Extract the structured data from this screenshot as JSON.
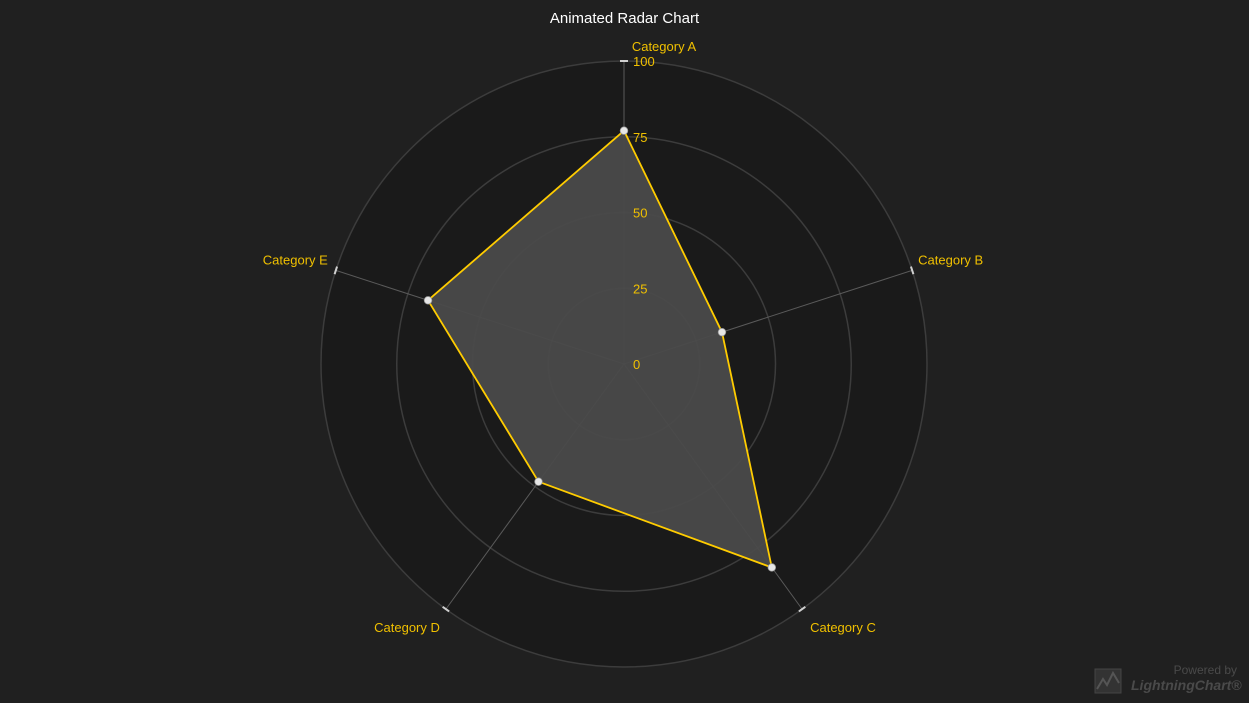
{
  "chart_data": {
    "type": "radar",
    "title": "Animated Radar Chart",
    "categories": [
      "Category A",
      "Category B",
      "Category C",
      "Category D",
      "Category E"
    ],
    "rlim": [
      0,
      100
    ],
    "ticks": [
      0,
      25,
      50,
      75,
      100
    ],
    "tick_labels": [
      "0",
      "25",
      "50",
      "75",
      "100"
    ],
    "grid": true,
    "series": [
      {
        "values": [
          77,
          34,
          83,
          48,
          68
        ]
      }
    ]
  },
  "colors": {
    "background": "#202020",
    "plot_background": "#1a1a1a",
    "grid": "#3c3c3c",
    "axis": "#5a5a5a",
    "label": "#f0c000",
    "series_stroke": "#ffcc00",
    "series_fill": "#4a4a4a",
    "point": "#e6e6e6"
  },
  "watermark": {
    "powered": "Powered by",
    "brand": "LightningChart®"
  }
}
